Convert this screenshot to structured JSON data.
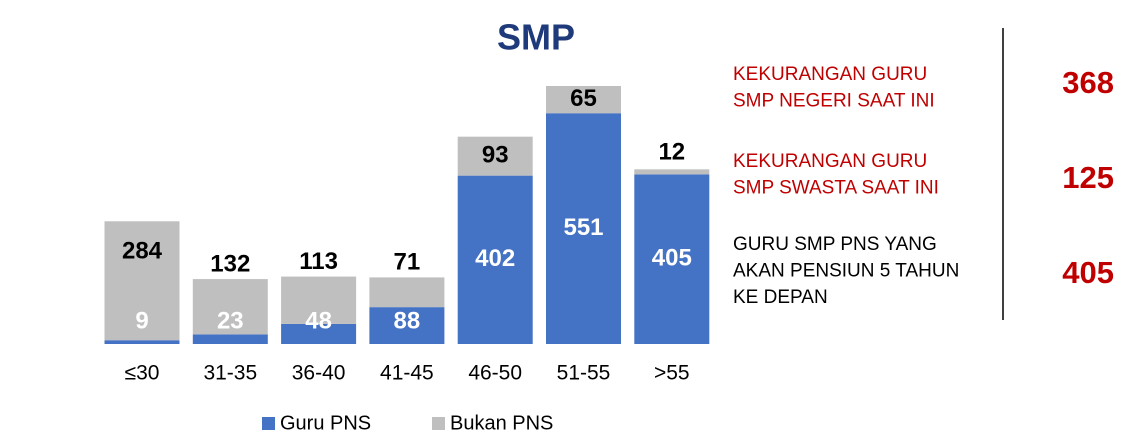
{
  "chart_data": {
    "type": "stacked_bar",
    "title": "SMP",
    "categories": [
      "≤30",
      "31-35",
      "36-40",
      "41-45",
      "46-50",
      "51-55",
      ">55"
    ],
    "series": [
      {
        "name": "Guru PNS",
        "color": "#4472c4",
        "values": [
          9,
          23,
          48,
          88,
          402,
          551,
          405
        ]
      },
      {
        "name": "Bukan PNS",
        "color": "#bfbfbf",
        "values": [
          284,
          132,
          113,
          71,
          93,
          65,
          12
        ]
      }
    ],
    "legend": "bottom"
  },
  "panel": [
    {
      "lines": [
        "KEKURANGAN GURU",
        "SMP NEGERI SAAT INI"
      ],
      "value": 368,
      "color": "#c00000"
    },
    {
      "lines": [
        "KEKURANGAN GURU",
        "SMP SWASTA SAAT INI"
      ],
      "value": 125,
      "color": "#c00000"
    },
    {
      "lines": [
        "GURU SMP PNS YANG",
        "AKAN PENSIUN 5 TAHUN",
        "KE DEPAN"
      ],
      "value": 405,
      "color": "#000000"
    }
  ]
}
